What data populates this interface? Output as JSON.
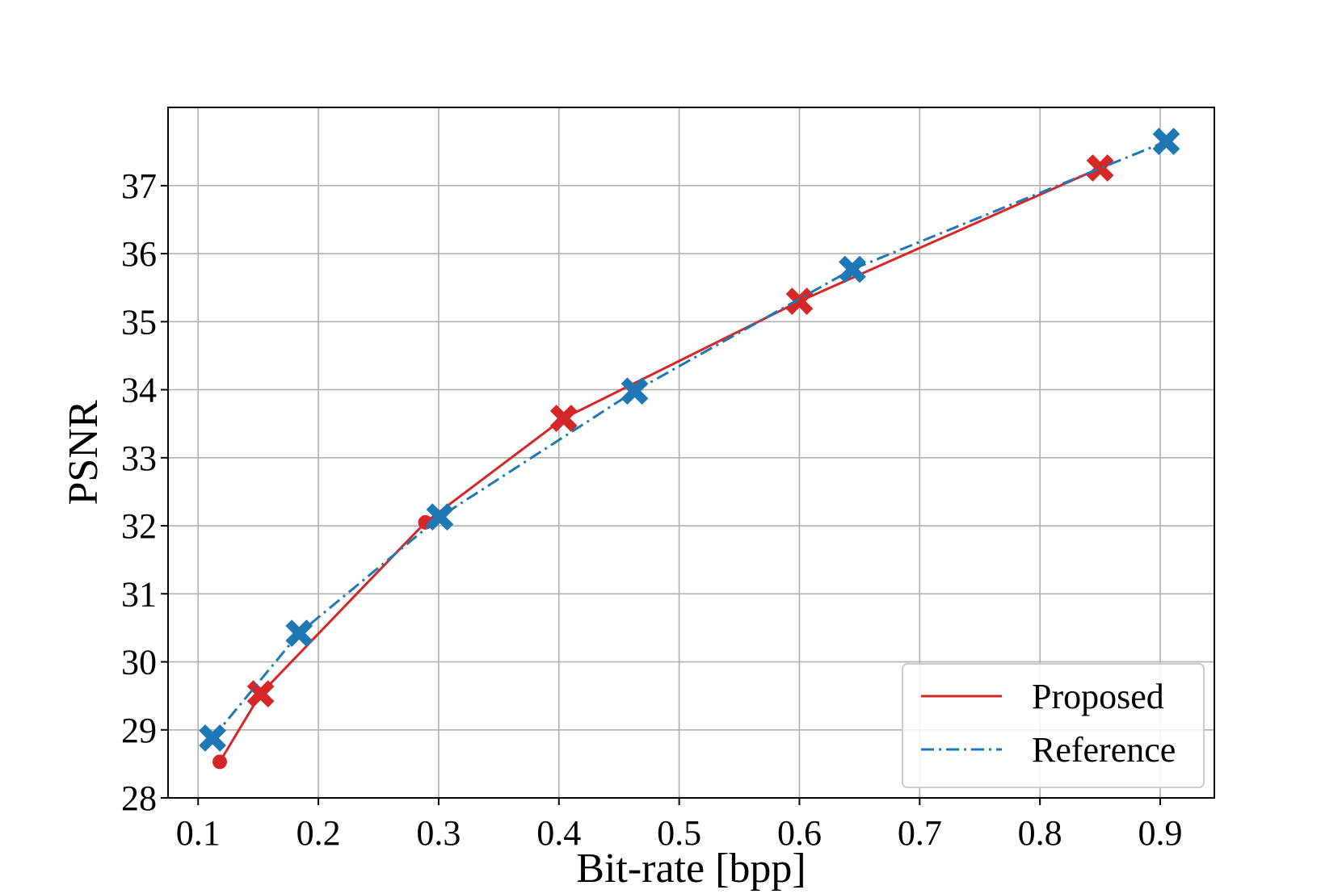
{
  "chart_data": {
    "type": "line",
    "title": "",
    "xlabel": "Bit-rate [bpp]",
    "ylabel": "PSNR",
    "xlim": [
      0.075,
      0.945
    ],
    "ylim": [
      28,
      38.15
    ],
    "xticks": [
      0.1,
      0.2,
      0.3,
      0.4,
      0.5,
      0.6,
      0.7,
      0.8,
      0.9
    ],
    "xtick_labels": [
      "0.1",
      "0.2",
      "0.3",
      "0.4",
      "0.5",
      "0.6",
      "0.7",
      "0.8",
      "0.9"
    ],
    "yticks": [
      28,
      29,
      30,
      31,
      32,
      33,
      34,
      35,
      36,
      37
    ],
    "ytick_labels": [
      "28",
      "29",
      "30",
      "31",
      "32",
      "33",
      "34",
      "35",
      "36",
      "37"
    ],
    "grid": true,
    "legend_position": "lower-right",
    "series": [
      {
        "name": "Proposed",
        "color": "#d62728",
        "line_style": "solid",
        "x": [
          0.118,
          0.152,
          0.289,
          0.404,
          0.6,
          0.85
        ],
        "y": [
          28.53,
          29.53,
          32.05,
          33.58,
          35.3,
          37.26
        ],
        "markers": [
          "dot",
          "x",
          "dot",
          "x",
          "x",
          "x"
        ]
      },
      {
        "name": "Reference",
        "color": "#1f77b4",
        "line_style": "dashdot",
        "x": [
          0.112,
          0.184,
          0.301,
          0.463,
          0.644,
          0.905
        ],
        "y": [
          28.88,
          30.42,
          32.13,
          33.98,
          35.77,
          37.65
        ],
        "markers": [
          "x",
          "x",
          "x",
          "x",
          "x",
          "x"
        ]
      }
    ]
  }
}
